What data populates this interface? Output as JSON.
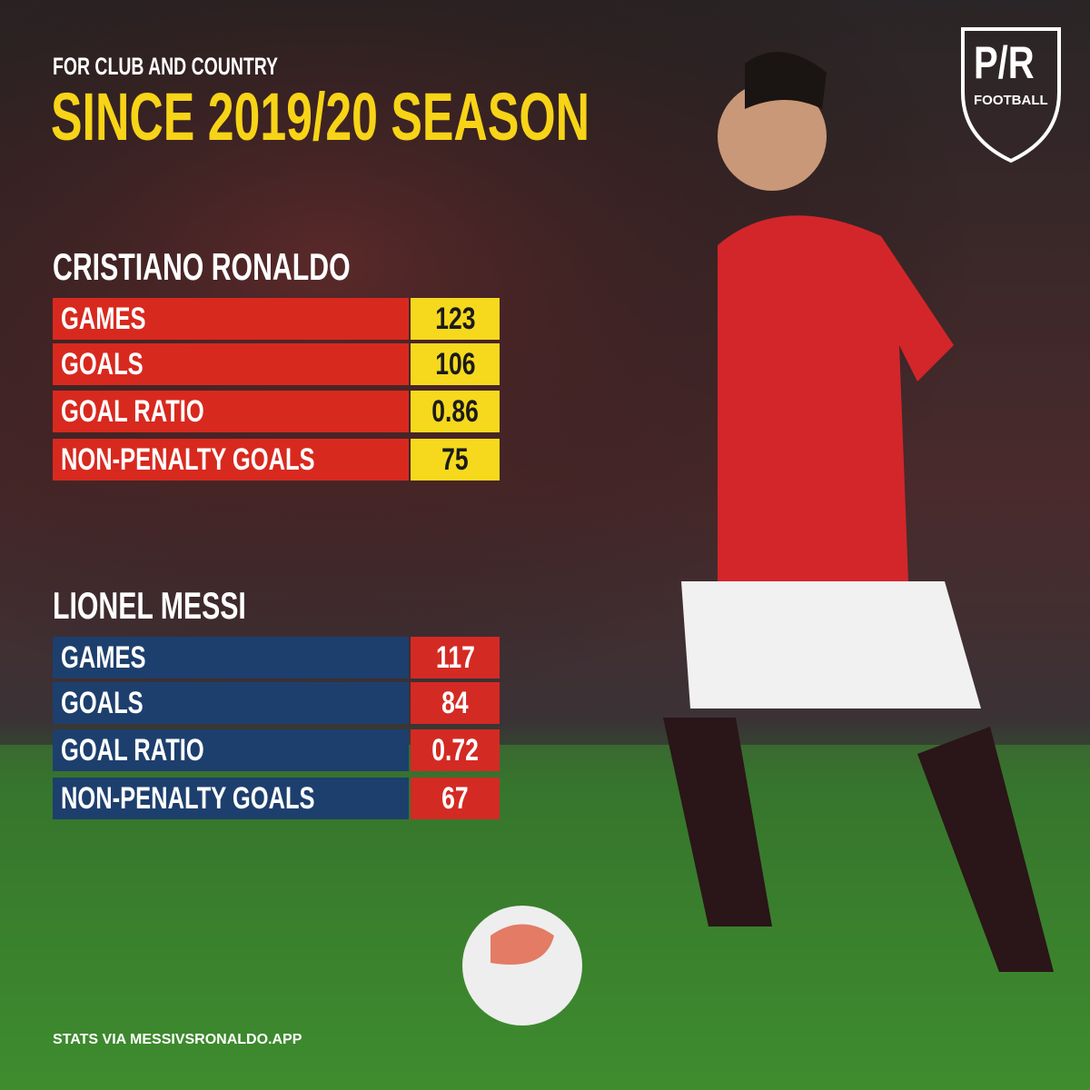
{
  "header": {
    "kicker": "FOR CLUB AND COUNTRY",
    "title": "SINCE 2019/20 SEASON"
  },
  "logo": {
    "mark": "P/R",
    "sub": "FOOTBALL"
  },
  "players": [
    {
      "name": "CRISTIANO RONALDO",
      "rows": [
        [
          "GAMES",
          123
        ],
        [
          "GOALS",
          106
        ],
        [
          "GOAL RATIO",
          0.86
        ],
        [
          "NON-PENALTY GOALS",
          75
        ]
      ]
    },
    {
      "name": "LIONEL MESSI",
      "rows": [
        [
          "GAMES",
          117
        ],
        [
          "GOALS",
          84
        ],
        [
          "GOAL RATIO",
          0.72
        ],
        [
          "NON-PENALTY GOALS",
          67
        ]
      ]
    }
  ],
  "footer": "STATS VIA MESSIVSRONALDO.APP"
}
